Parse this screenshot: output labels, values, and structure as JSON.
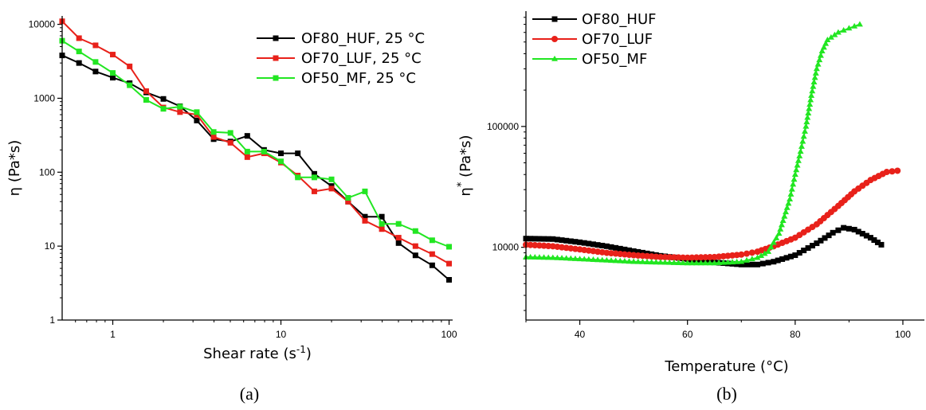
{
  "chart_data": [
    {
      "type": "line",
      "panel_label": "(a)",
      "xlabel": "Shear rate (s",
      "xlabel_sup": "-1",
      "xlabel_close": ")",
      "ylabel": "η (Pa*s)",
      "xscale": "log",
      "yscale": "log",
      "xlim": [
        0.5,
        105
      ],
      "ylim": [
        1,
        13000
      ],
      "x_ticks": [
        {
          "v": 1,
          "label": "1"
        },
        {
          "v": 10,
          "label": "10"
        },
        {
          "v": 100,
          "label": "100"
        }
      ],
      "y_ticks": [
        {
          "v": 1,
          "label": "1"
        },
        {
          "v": 10,
          "label": "10"
        },
        {
          "v": 100,
          "label": "100"
        },
        {
          "v": 1000,
          "label": "1000"
        },
        {
          "v": 10000,
          "label": "10000"
        }
      ],
      "legend_position": "top-right",
      "x": [
        0.5,
        0.63,
        0.79,
        1.0,
        1.26,
        1.58,
        2.0,
        2.51,
        3.16,
        3.98,
        5.01,
        6.31,
        7.94,
        10.0,
        12.6,
        15.8,
        20.0,
        25.1,
        31.6,
        39.8,
        50.1,
        63.1,
        79.4,
        100
      ],
      "series": [
        {
          "name": "OF80_HUF, 25 °C",
          "color": "#000000",
          "marker": "square",
          "values": [
            3800,
            3000,
            2300,
            1900,
            1600,
            1200,
            980,
            780,
            500,
            280,
            260,
            310,
            200,
            180,
            180,
            95,
            65,
            40,
            25,
            25,
            11,
            7.5,
            5.5,
            3.5
          ]
        },
        {
          "name": "OF70_LUF, 25 °C",
          "color": "#e8211a",
          "marker": "square",
          "values": [
            11000,
            6500,
            5200,
            3900,
            2700,
            1250,
            750,
            650,
            600,
            300,
            250,
            160,
            180,
            135,
            90,
            55,
            60,
            40,
            22,
            17,
            13,
            10,
            7.8,
            5.8
          ]
        },
        {
          "name": "OF50_MF, 25 °C",
          "color": "#22e622",
          "marker": "square",
          "values": [
            6000,
            4300,
            3100,
            2200,
            1500,
            950,
            720,
            770,
            650,
            350,
            340,
            190,
            190,
            140,
            85,
            85,
            80,
            45,
            55,
            20,
            20,
            16,
            12,
            9.8
          ]
        }
      ]
    },
    {
      "type": "line",
      "panel_label": "(b)",
      "xlabel": "Temperature (°C)",
      "ylabel": "η* (Pa*s)",
      "ylabel_main": "η",
      "ylabel_sup": "*",
      "ylabel_rest": " (Pa*s)",
      "xscale": "linear",
      "yscale": "log",
      "xlim": [
        30,
        104
      ],
      "ylim": [
        2500,
        900000
      ],
      "x_ticks": [
        {
          "v": 40,
          "label": "40"
        },
        {
          "v": 60,
          "label": "60"
        },
        {
          "v": 80,
          "label": "80"
        },
        {
          "v": 100,
          "label": "100"
        }
      ],
      "y_ticks": [
        {
          "v": 10000,
          "label": "10000"
        },
        {
          "v": 100000,
          "label": "100000"
        }
      ],
      "legend_position": "top-left",
      "series": [
        {
          "name": "OF80_HUF",
          "color": "#000000",
          "marker": "square",
          "points": [
            [
              30,
              11800
            ],
            [
              35,
              11700
            ],
            [
              40,
              11000
            ],
            [
              45,
              10200
            ],
            [
              50,
              9300
            ],
            [
              55,
              8500
            ],
            [
              60,
              8000
            ],
            [
              65,
              7500
            ],
            [
              70,
              7200
            ],
            [
              73,
              7200
            ],
            [
              76,
              7600
            ],
            [
              80,
              8600
            ],
            [
              84,
              10800
            ],
            [
              87,
              13200
            ],
            [
              89,
              14500
            ],
            [
              91,
              14000
            ],
            [
              94,
              12000
            ],
            [
              96,
              10500
            ]
          ]
        },
        {
          "name": "OF70_LUF",
          "color": "#e8211a",
          "marker": "circle",
          "points": [
            [
              30,
              10500
            ],
            [
              35,
              10200
            ],
            [
              40,
              9600
            ],
            [
              45,
              9000
            ],
            [
              50,
              8600
            ],
            [
              55,
              8300
            ],
            [
              60,
              8200
            ],
            [
              65,
              8300
            ],
            [
              70,
              8700
            ],
            [
              73,
              9200
            ],
            [
              76,
              10200
            ],
            [
              80,
              12000
            ],
            [
              84,
              15500
            ],
            [
              88,
              22000
            ],
            [
              91,
              29000
            ],
            [
              94,
              36000
            ],
            [
              97,
              42000
            ],
            [
              99,
              43000
            ]
          ]
        },
        {
          "name": "OF50_MF",
          "color": "#22e622",
          "marker": "triangle",
          "points": [
            [
              30,
              8300
            ],
            [
              35,
              8200
            ],
            [
              40,
              8000
            ],
            [
              45,
              7800
            ],
            [
              50,
              7600
            ],
            [
              55,
              7500
            ],
            [
              60,
              7400
            ],
            [
              65,
              7400
            ],
            [
              70,
              7600
            ],
            [
              73,
              8200
            ],
            [
              75,
              9200
            ],
            [
              77,
              13000
            ],
            [
              79,
              25000
            ],
            [
              80,
              40000
            ],
            [
              81,
              62000
            ],
            [
              82,
              100000
            ],
            [
              83,
              180000
            ],
            [
              84,
              300000
            ],
            [
              85,
              420000
            ],
            [
              86,
              520000
            ],
            [
              88,
              600000
            ],
            [
              90,
              650000
            ],
            [
              92,
              700000
            ]
          ]
        }
      ]
    }
  ]
}
